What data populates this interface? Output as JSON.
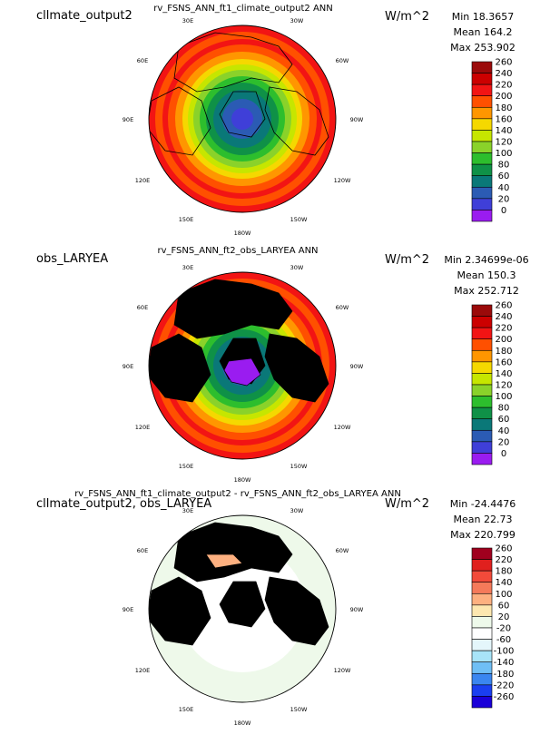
{
  "panels": [
    {
      "case_name": "cllmate_output2",
      "title": "rv_FSNS_ANN_ft1_climate_output2  ANN",
      "units": "W/m^2",
      "stats": {
        "min": "Min 18.3657",
        "mean": "Mean 164.2",
        "max": "Max 253.902"
      },
      "colorbar": {
        "labels": [
          "260",
          "240",
          "220",
          "200",
          "180",
          "160",
          "140",
          "120",
          "100",
          "80",
          "60",
          "40",
          "20",
          "0"
        ],
        "colors": [
          "#9b0a0a",
          "#cc0000",
          "#f21414",
          "#ff5000",
          "#ff9600",
          "#f5d800",
          "#c6e600",
          "#8ad22a",
          "#2dbe2d",
          "#0f9147",
          "#0a7878",
          "#2b5bb4",
          "#3f3fd8",
          "#9a1cf0"
        ]
      },
      "map_style": "model"
    },
    {
      "case_name": "obs_LARYEA",
      "title": "rv_FSNS_ANN_ft2_obs_LARYEA  ANN",
      "units": "W/m^2",
      "stats": {
        "min": "Min 2.34699e-06",
        "mean": "Mean 150.3",
        "max": "Max 252.712"
      },
      "colorbar": {
        "labels": [
          "260",
          "240",
          "220",
          "200",
          "180",
          "160",
          "140",
          "120",
          "100",
          "80",
          "60",
          "40",
          "20",
          "0"
        ],
        "colors": [
          "#9b0a0a",
          "#cc0000",
          "#f21414",
          "#ff5000",
          "#ff9600",
          "#f5d800",
          "#c6e600",
          "#8ad22a",
          "#2dbe2d",
          "#0f9147",
          "#0a7878",
          "#2b5bb4",
          "#3f3fd8",
          "#9a1cf0"
        ]
      },
      "map_style": "obs"
    },
    {
      "case_name": "cllmate_output2, obs_LARYEA",
      "title": "rv_FSNS_ANN_ft1_climate_output2 - rv_FSNS_ANN_ft2_obs_LARYEA  ANN",
      "units": "W/m^2",
      "stats": {
        "min": "Min -24.4476",
        "mean": "Mean 22.73",
        "max": "Max 220.799"
      },
      "colorbar": {
        "labels": [
          "260",
          "220",
          "180",
          "140",
          "100",
          "60",
          "20",
          "-20",
          "-60",
          "-100",
          "-140",
          "-180",
          "-220",
          "-260"
        ],
        "colors": [
          "#a0001e",
          "#e0201e",
          "#f24a3a",
          "#f57a5a",
          "#fdb080",
          "#fde7b0",
          "#eef9ea",
          "#ffffff",
          "#e4f6fb",
          "#a8e4f8",
          "#6fbff5",
          "#3a86f0",
          "#1a3ff0",
          "#1a00d8"
        ]
      },
      "map_style": "diff"
    }
  ],
  "grid_labels": {
    "top_left": "30E",
    "top_right": "30W",
    "left_upper": "60E",
    "right_upper": "60W",
    "left_mid": "90E",
    "right_mid": "90W",
    "left_lower": "120E",
    "right_lower": "120W",
    "bottom_left": "150E",
    "bottom_right": "150W",
    "bottom": "180W"
  },
  "chart_data": [
    {
      "type": "heatmap",
      "projection": "polar-stereographic",
      "hemisphere": "north",
      "title": "rv_FSNS_ANN_ft1_climate_output2  ANN",
      "case": "cllmate_output2",
      "units": "W/m^2",
      "min": 18.3657,
      "mean": 164.2,
      "max": 253.902,
      "contour_levels": [
        0,
        20,
        40,
        60,
        80,
        100,
        120,
        140,
        160,
        180,
        200,
        220,
        240,
        260
      ]
    },
    {
      "type": "heatmap",
      "projection": "polar-stereographic",
      "hemisphere": "north",
      "title": "rv_FSNS_ANN_ft2_obs_LARYEA  ANN",
      "case": "obs_LARYEA",
      "units": "W/m^2",
      "min": 2.34699e-06,
      "mean": 150.3,
      "max": 252.712,
      "contour_levels": [
        0,
        20,
        40,
        60,
        80,
        100,
        120,
        140,
        160,
        180,
        200,
        220,
        240,
        260
      ],
      "missing_over_land": true
    },
    {
      "type": "heatmap",
      "projection": "polar-stereographic",
      "hemisphere": "north",
      "title": "rv_FSNS_ANN_ft1_climate_output2 - rv_FSNS_ANN_ft2_obs_LARYEA  ANN",
      "case": "cllmate_output2, obs_LARYEA",
      "units": "W/m^2",
      "min": -24.4476,
      "mean": 22.73,
      "max": 220.799,
      "contour_levels": [
        -260,
        -220,
        -180,
        -140,
        -100,
        -60,
        -20,
        20,
        60,
        100,
        140,
        180,
        220,
        260
      ]
    }
  ]
}
